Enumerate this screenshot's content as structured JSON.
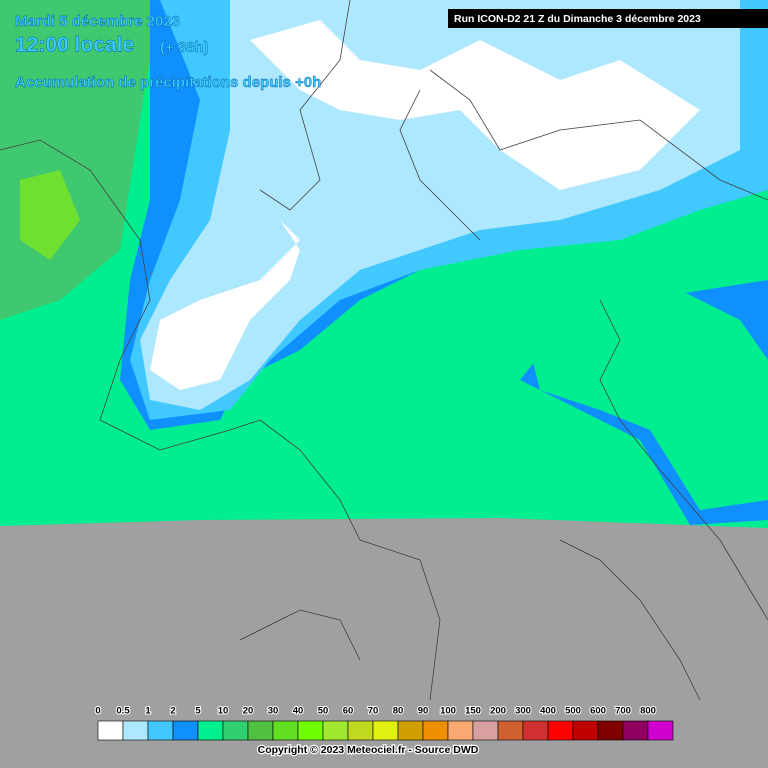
{
  "header": {
    "date": "Mardi 5 décembre 2023",
    "time": "12:00 locale",
    "offset": "(+ 38h)",
    "subject": "Accumulation de précipitations depuis +0h",
    "run": "Run ICON-D2 21 Z du Dimanche 3 décembre 2023"
  },
  "legend": {
    "labels": [
      0,
      0.5,
      1,
      2,
      5,
      10,
      20,
      30,
      40,
      50,
      60,
      70,
      80,
      90,
      100,
      150,
      200,
      300,
      400,
      500,
      600,
      700,
      800
    ],
    "colors": [
      "#ffffff",
      "#aee8ff",
      "#40c8ff",
      "#1090ff",
      "#00f090",
      "#30d070",
      "#50c040",
      "#60e020",
      "#70ff00",
      "#a0e830",
      "#c0d820",
      "#e0f010",
      "#d0a000",
      "#f09000",
      "#f8a870",
      "#d8a0a0",
      "#d06030",
      "#d03030",
      "#ff0000",
      "#c00000",
      "#800000",
      "#900060",
      "#d000d0"
    ]
  },
  "footer": {
    "copyright": "Copyright © 2023 Meteociel.fr - Source DWD"
  }
}
